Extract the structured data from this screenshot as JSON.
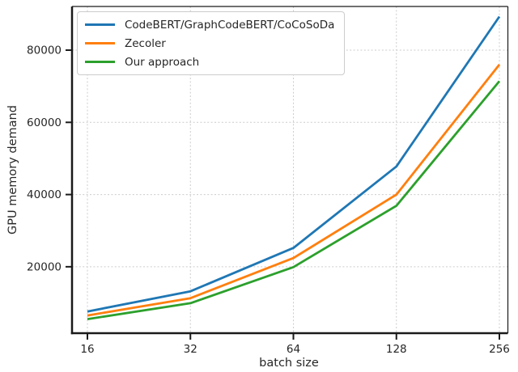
{
  "chart_data": {
    "type": "line",
    "title": "",
    "xlabel": "batch size",
    "ylabel": "GPU memory demand",
    "xscale": "log2",
    "x": [
      16,
      32,
      64,
      128,
      256
    ],
    "x_tick_labels": [
      "16",
      "32",
      "64",
      "128",
      "256"
    ],
    "y_ticks": [
      20000,
      40000,
      60000,
      80000
    ],
    "y_tick_labels": [
      "20000",
      "40000",
      "60000",
      "80000"
    ],
    "xlim": [
      14.2,
      288
    ],
    "ylim": [
      1600,
      92100
    ],
    "grid": true,
    "grid_style": "dashed",
    "legend_position": "upper left",
    "series": [
      {
        "name": "CodeBERT/GraphCodeBERT/CoCoSoDa",
        "color": "#1f77b4",
        "values": [
          7600,
          13200,
          25200,
          47800,
          89300
        ]
      },
      {
        "name": "Zecoler",
        "color": "#ff7f0e",
        "values": [
          6500,
          11300,
          22400,
          40000,
          76000
        ]
      },
      {
        "name": "Our approach",
        "color": "#2ca02c",
        "values": [
          5500,
          9900,
          19900,
          36900,
          71400
        ]
      }
    ]
  },
  "colors": {
    "background": "#ffffff",
    "grid": "#cccccc",
    "spine": "#1a1a1a",
    "text": "#262626",
    "legend_border": "#cccccc"
  }
}
